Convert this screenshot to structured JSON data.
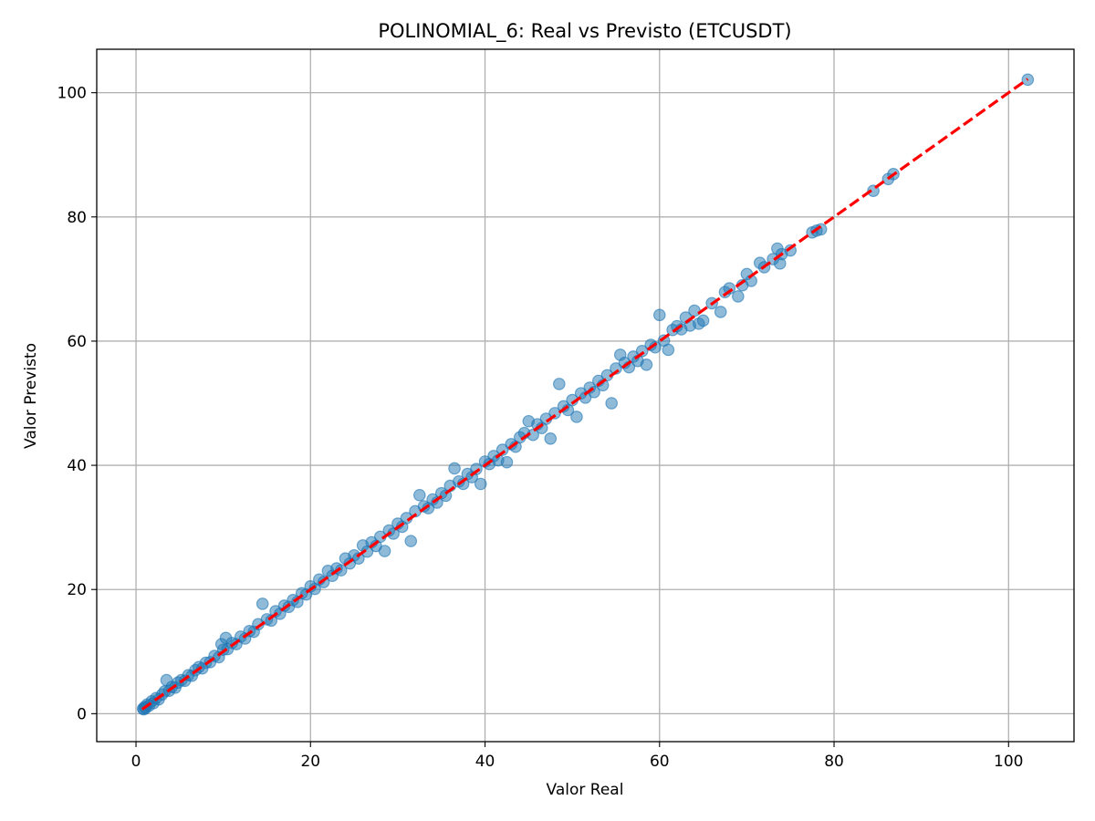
{
  "chart_data": {
    "type": "scatter",
    "title": "POLINOMIAL_6: Real vs Previsto (ETCUSDT)",
    "xlabel": "Valor Real",
    "ylabel": "Valor Previsto",
    "xlim": [
      -4.5,
      107.5
    ],
    "ylim": [
      -4.5,
      107.0
    ],
    "xticks": [
      0,
      20,
      40,
      60,
      80,
      100
    ],
    "yticks": [
      0,
      20,
      40,
      60,
      80,
      100
    ],
    "grid": true,
    "colors": {
      "points": "#1f77b4",
      "reference_line": "#ff0000"
    },
    "reference_line": {
      "style": "dashed",
      "from": [
        0.7,
        0.7
      ],
      "to": [
        102.2,
        102.2
      ]
    },
    "series": [
      {
        "points": [
          [
            0.8,
            0.8
          ],
          [
            0.9,
            0.7
          ],
          [
            1.0,
            1.1
          ],
          [
            1.1,
            0.9
          ],
          [
            1.3,
            1.5
          ],
          [
            1.5,
            1.3
          ],
          [
            1.8,
            2.0
          ],
          [
            2.0,
            1.7
          ],
          [
            2.3,
            2.5
          ],
          [
            2.6,
            2.3
          ],
          [
            3.0,
            3.1
          ],
          [
            3.3,
            3.6
          ],
          [
            3.5,
            5.4
          ],
          [
            3.8,
            3.7
          ],
          [
            4.1,
            4.3
          ],
          [
            4.5,
            4.2
          ],
          [
            4.8,
            5.0
          ],
          [
            5.2,
            5.4
          ],
          [
            5.6,
            5.3
          ],
          [
            6.0,
            6.2
          ],
          [
            6.4,
            6.1
          ],
          [
            6.8,
            7.0
          ],
          [
            7.2,
            7.5
          ],
          [
            7.6,
            7.3
          ],
          [
            8.0,
            8.2
          ],
          [
            8.5,
            8.3
          ],
          [
            9.0,
            9.3
          ],
          [
            9.5,
            9.1
          ],
          [
            9.8,
            11.2
          ],
          [
            10.0,
            10.3
          ],
          [
            10.3,
            12.2
          ],
          [
            10.5,
            10.4
          ],
          [
            11.0,
            11.4
          ],
          [
            11.5,
            11.2
          ],
          [
            12.0,
            12.4
          ],
          [
            12.5,
            12.1
          ],
          [
            13.0,
            13.3
          ],
          [
            13.5,
            13.2
          ],
          [
            14.0,
            14.4
          ],
          [
            14.5,
            17.7
          ],
          [
            15.0,
            15.2
          ],
          [
            15.5,
            15.0
          ],
          [
            16.0,
            16.5
          ],
          [
            16.5,
            16.1
          ],
          [
            17.0,
            17.4
          ],
          [
            17.5,
            17.2
          ],
          [
            18.0,
            18.3
          ],
          [
            18.5,
            18.0
          ],
          [
            19.0,
            19.4
          ],
          [
            19.5,
            19.2
          ],
          [
            20.0,
            20.5
          ],
          [
            20.5,
            20.1
          ],
          [
            21.0,
            21.6
          ],
          [
            21.5,
            21.2
          ],
          [
            22.0,
            23.0
          ],
          [
            22.5,
            22.2
          ],
          [
            23.0,
            23.4
          ],
          [
            23.5,
            23.1
          ],
          [
            24.0,
            25.0
          ],
          [
            24.5,
            24.2
          ],
          [
            25.0,
            25.5
          ],
          [
            25.5,
            25.0
          ],
          [
            26.0,
            27.1
          ],
          [
            26.5,
            26.1
          ],
          [
            27.0,
            27.6
          ],
          [
            27.5,
            27.0
          ],
          [
            28.0,
            28.5
          ],
          [
            28.5,
            26.2
          ],
          [
            29.0,
            29.5
          ],
          [
            29.5,
            29.0
          ],
          [
            30.0,
            30.6
          ],
          [
            30.5,
            30.1
          ],
          [
            31.0,
            31.5
          ],
          [
            31.5,
            27.8
          ],
          [
            32.0,
            32.6
          ],
          [
            32.5,
            35.2
          ],
          [
            33.0,
            33.4
          ],
          [
            33.5,
            33.1
          ],
          [
            34.0,
            34.5
          ],
          [
            34.5,
            34.0
          ],
          [
            35.0,
            35.5
          ],
          [
            35.5,
            35.1
          ],
          [
            36.0,
            36.7
          ],
          [
            36.5,
            39.5
          ],
          [
            37.0,
            37.4
          ],
          [
            37.5,
            37.0
          ],
          [
            38.0,
            38.6
          ],
          [
            38.5,
            38.1
          ],
          [
            39.0,
            39.4
          ],
          [
            39.5,
            37.0
          ],
          [
            40.0,
            40.6
          ],
          [
            40.5,
            40.2
          ],
          [
            41.0,
            41.5
          ],
          [
            41.5,
            40.8
          ],
          [
            42.0,
            42.5
          ],
          [
            42.5,
            40.5
          ],
          [
            43.0,
            43.4
          ],
          [
            43.5,
            43.0
          ],
          [
            44.0,
            44.5
          ],
          [
            44.5,
            45.2
          ],
          [
            45.0,
            47.1
          ],
          [
            45.5,
            44.9
          ],
          [
            46.0,
            46.6
          ],
          [
            46.5,
            46.0
          ],
          [
            47.0,
            47.5
          ],
          [
            47.5,
            44.3
          ],
          [
            48.0,
            48.4
          ],
          [
            48.5,
            53.1
          ],
          [
            49.0,
            49.5
          ],
          [
            49.5,
            48.9
          ],
          [
            50.0,
            50.5
          ],
          [
            50.5,
            47.8
          ],
          [
            51.0,
            51.6
          ],
          [
            51.5,
            50.9
          ],
          [
            52.0,
            52.5
          ],
          [
            52.5,
            51.8
          ],
          [
            53.0,
            53.6
          ],
          [
            53.5,
            52.9
          ],
          [
            54.0,
            54.5
          ],
          [
            54.5,
            50.0
          ],
          [
            55.0,
            55.6
          ],
          [
            55.5,
            57.8
          ],
          [
            56.0,
            56.5
          ],
          [
            56.5,
            55.8
          ],
          [
            57.0,
            57.5
          ],
          [
            57.5,
            56.8
          ],
          [
            58.0,
            58.4
          ],
          [
            58.5,
            56.2
          ],
          [
            59.0,
            59.4
          ],
          [
            59.5,
            59.0
          ],
          [
            60.0,
            64.2
          ],
          [
            60.5,
            60.1
          ],
          [
            61.0,
            58.6
          ],
          [
            61.5,
            61.8
          ],
          [
            62.0,
            62.4
          ],
          [
            62.5,
            61.9
          ],
          [
            63.0,
            63.8
          ],
          [
            63.5,
            62.5
          ],
          [
            64.0,
            64.9
          ],
          [
            64.5,
            62.8
          ],
          [
            65.0,
            63.3
          ],
          [
            66.0,
            66.1
          ],
          [
            67.0,
            64.7
          ],
          [
            67.5,
            67.9
          ],
          [
            68.0,
            68.5
          ],
          [
            69.0,
            67.2
          ],
          [
            69.5,
            69.0
          ],
          [
            70.0,
            70.8
          ],
          [
            70.5,
            69.7
          ],
          [
            71.5,
            72.6
          ],
          [
            72.0,
            71.9
          ],
          [
            73.0,
            73.2
          ],
          [
            73.5,
            74.9
          ],
          [
            73.8,
            72.5
          ],
          [
            74.0,
            74.0
          ],
          [
            75.0,
            74.6
          ],
          [
            77.5,
            77.5
          ],
          [
            78.0,
            77.8
          ],
          [
            78.5,
            78.0
          ],
          [
            84.5,
            84.2
          ],
          [
            86.2,
            86.1
          ],
          [
            86.8,
            86.9
          ],
          [
            102.2,
            102.1
          ]
        ]
      }
    ]
  }
}
